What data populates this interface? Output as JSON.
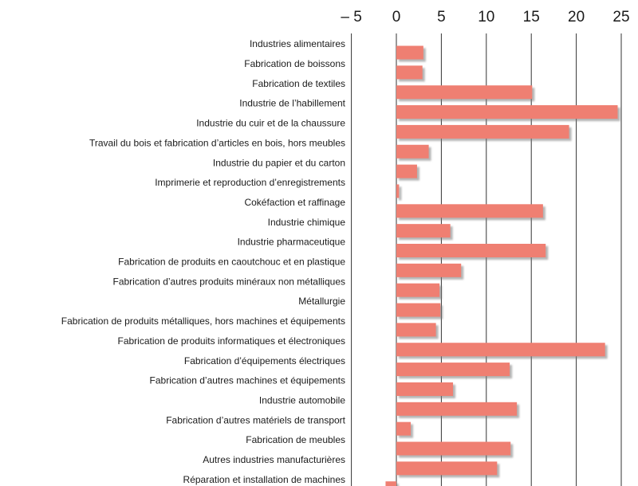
{
  "chart_data": {
    "type": "bar",
    "orientation": "horizontal",
    "categories": [
      "Industries alimentaires",
      "Fabrication de boissons",
      "Fabrication de textiles",
      "Industrie de l’habillement",
      "Industrie du cuir et de la chaussure",
      "Travail du bois et fabrication d’articles en bois, hors meubles",
      "Industrie du papier et du carton",
      "Imprimerie et reproduction d’enregistrements",
      "Cokéfaction et raffinage",
      "Industrie chimique",
      "Industrie pharmaceutique",
      "Fabrication de produits en caoutchouc et en plastique",
      "Fabrication d’autres produits minéraux non métalliques",
      "Métallurgie",
      "Fabrication de produits métalliques, hors machines et équipements",
      "Fabrication de produits informatiques et  électroniques",
      "Fabrication d’équipements électriques",
      "Fabrication d’autres machines et équipements",
      "Industrie automobile",
      "Fabrication d’autres matériels de transport",
      "Fabrication de meubles",
      "Autres industries manufacturières",
      "Réparation et installation de machines"
    ],
    "values": [
      3.0,
      2.9,
      15.1,
      24.6,
      19.2,
      3.6,
      2.3,
      0.3,
      16.3,
      6.0,
      16.6,
      7.2,
      4.8,
      4.9,
      4.4,
      23.2,
      12.6,
      6.3,
      13.4,
      1.6,
      12.7,
      11.2,
      -1.2
    ],
    "color": "#ef7f72",
    "xlim": [
      -5.5,
      26
    ],
    "xticks": [
      {
        "value": -5,
        "label": "– 5"
      },
      0,
      5,
      10,
      15,
      20,
      25
    ],
    "grid": true
  }
}
